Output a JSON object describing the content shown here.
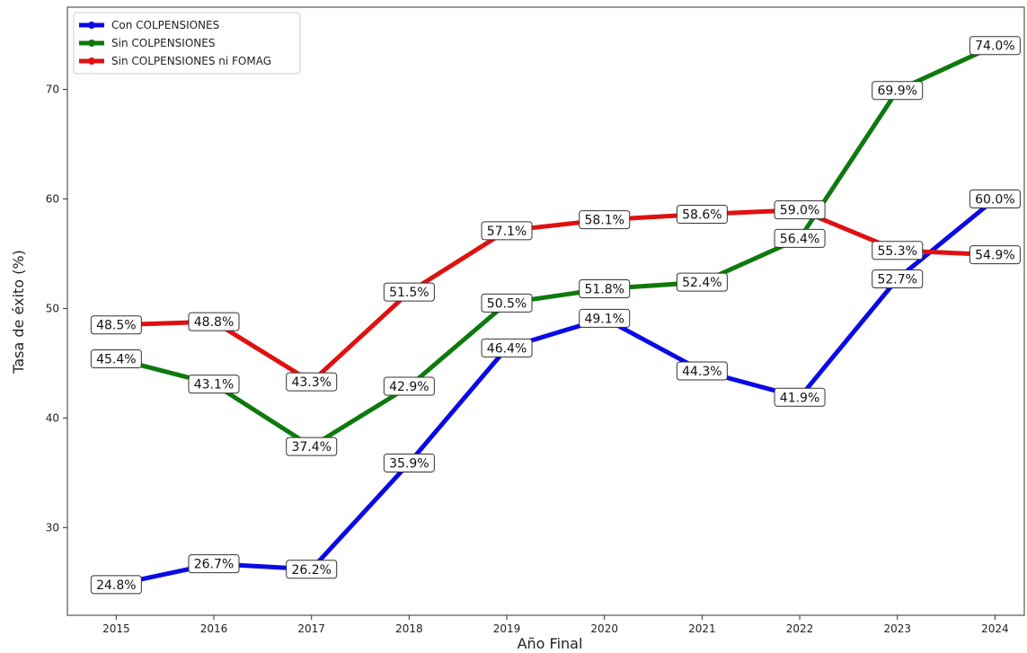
{
  "chart_data": {
    "type": "line",
    "title": "",
    "xlabel": "Año Final",
    "ylabel": "Tasa de éxito (%)",
    "x": [
      2015,
      2016,
      2017,
      2018,
      2019,
      2020,
      2021,
      2022,
      2023,
      2024
    ],
    "x_tick_labels": [
      "2015",
      "2016",
      "2017",
      "2018",
      "2019",
      "2020",
      "2021",
      "2022",
      "2023",
      "2024"
    ],
    "xlim": [
      2014.5,
      2024.3
    ],
    "ylim": [
      22,
      77.5
    ],
    "y_ticks": [
      30,
      40,
      50,
      60,
      70
    ],
    "y_tick_labels": [
      "30",
      "40",
      "50",
      "60",
      "70"
    ],
    "grid": false,
    "legend_position": "top-left",
    "series": [
      {
        "name": "Con COLPENSIONES",
        "color": "#0a0ae6",
        "values": [
          24.8,
          26.7,
          26.2,
          35.9,
          46.4,
          49.1,
          44.3,
          41.9,
          52.7,
          60.0
        ],
        "labels": [
          "24.8%",
          "26.7%",
          "26.2%",
          "35.9%",
          "46.4%",
          "49.1%",
          "44.3%",
          "41.9%",
          "52.7%",
          "60.0%"
        ]
      },
      {
        "name": "Sin COLPENSIONES",
        "color": "#0d7a0d",
        "values": [
          45.4,
          43.1,
          37.4,
          42.9,
          50.5,
          51.8,
          52.4,
          56.4,
          69.9,
          74.0
        ],
        "labels": [
          "45.4%",
          "43.1%",
          "37.4%",
          "42.9%",
          "50.5%",
          "51.8%",
          "52.4%",
          "56.4%",
          "69.9%",
          "74.0%"
        ]
      },
      {
        "name": "Sin COLPENSIONES ni FOMAG",
        "color": "#e01010",
        "values": [
          48.5,
          48.8,
          43.3,
          51.5,
          57.1,
          58.1,
          58.6,
          59.0,
          55.3,
          54.9
        ],
        "labels": [
          "48.5%",
          "48.8%",
          "43.3%",
          "51.5%",
          "57.1%",
          "58.1%",
          "58.6%",
          "59.0%",
          "55.3%",
          "54.9%"
        ]
      }
    ]
  }
}
